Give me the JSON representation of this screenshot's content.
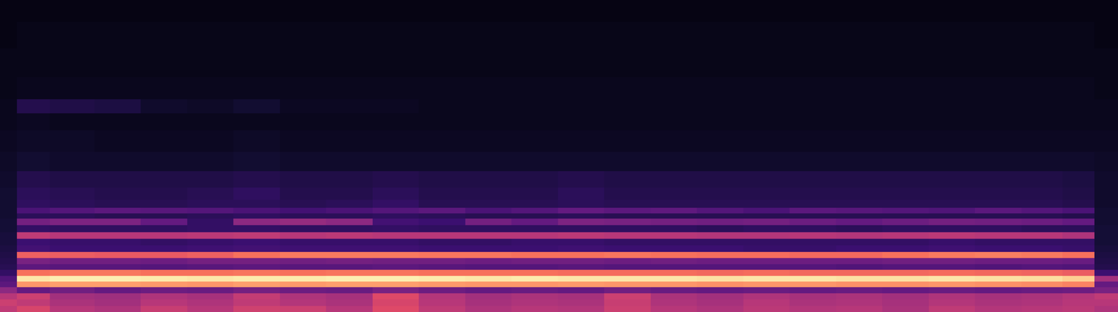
{
  "chart_data": {
    "type": "heatmap",
    "tick_labels": false,
    "xlim": [
      0,
      1568
    ],
    "ylim": [
      0,
      438
    ],
    "zlim": [
      0,
      100
    ],
    "x": [
      8,
      40,
      100,
      165,
      230,
      295,
      360,
      425,
      490,
      555,
      620,
      685,
      750,
      815,
      880,
      945,
      1010,
      1075,
      1140,
      1205,
      1270,
      1335,
      1400,
      1465,
      1515,
      1555
    ],
    "y": [
      4,
      13,
      22,
      31,
      39,
      47,
      55,
      63,
      71,
      80,
      89,
      98,
      107,
      117,
      127,
      135,
      142,
      150,
      165,
      185,
      210,
      240,
      270,
      288,
      310,
      350,
      390,
      425
    ],
    "z": [
      [
        52,
        58,
        50,
        48,
        54,
        50,
        56,
        55,
        50,
        60,
        52,
        48,
        50,
        49,
        55,
        50,
        48,
        51,
        49,
        50,
        47,
        52,
        49,
        50,
        51,
        48
      ],
      [
        55,
        52,
        47,
        45,
        50,
        48,
        52,
        49,
        47,
        58,
        50,
        46,
        48,
        47,
        54,
        48,
        46,
        50,
        47,
        48,
        46,
        49,
        47,
        48,
        50,
        50
      ],
      [
        50,
        55,
        45,
        44,
        48,
        46,
        53,
        48,
        46,
        60,
        49,
        45,
        47,
        46,
        55,
        47,
        45,
        48,
        46,
        47,
        45,
        48,
        46,
        47,
        49,
        52
      ],
      [
        40,
        30,
        33,
        30,
        32,
        31,
        34,
        32,
        31,
        35,
        32,
        30,
        31,
        30,
        33,
        31,
        30,
        31,
        30,
        31,
        30,
        31,
        30,
        31,
        32,
        35
      ],
      [
        28,
        78,
        80,
        80,
        79,
        78,
        80,
        79,
        80,
        80,
        79,
        78,
        78,
        79,
        78,
        78,
        77,
        78,
        78,
        77,
        77,
        78,
        77,
        76,
        74,
        30
      ],
      [
        25,
        95,
        97,
        97,
        96,
        95,
        96,
        96,
        97,
        97,
        96,
        95,
        96,
        95,
        95,
        95,
        94,
        95,
        95,
        94,
        94,
        95,
        94,
        93,
        90,
        45
      ],
      [
        18,
        70,
        72,
        72,
        70,
        70,
        71,
        70,
        71,
        71,
        70,
        70,
        70,
        69,
        69,
        69,
        68,
        69,
        68,
        68,
        68,
        69,
        68,
        67,
        65,
        20
      ],
      [
        15,
        28,
        27,
        27,
        26,
        27,
        28,
        27,
        27,
        28,
        27,
        26,
        26,
        27,
        26,
        26,
        26,
        26,
        26,
        25,
        26,
        26,
        25,
        26,
        25,
        14
      ],
      [
        14,
        35,
        33,
        33,
        32,
        34,
        34,
        33,
        34,
        33,
        33,
        32,
        33,
        33,
        32,
        33,
        32,
        32,
        32,
        32,
        33,
        33,
        32,
        32,
        31,
        13
      ],
      [
        13,
        66,
        65,
        64,
        64,
        66,
        70,
        72,
        72,
        72,
        71,
        71,
        70,
        70,
        71,
        70,
        69,
        69,
        68,
        68,
        70,
        72,
        73,
        72,
        70,
        12
      ],
      [
        12,
        22,
        20,
        20,
        20,
        21,
        22,
        21,
        21,
        21,
        20,
        20,
        20,
        21,
        20,
        20,
        20,
        19,
        19,
        20,
        20,
        21,
        20,
        20,
        19,
        11
      ],
      [
        11,
        20,
        19,
        19,
        18,
        19,
        20,
        19,
        19,
        19,
        18,
        18,
        19,
        19,
        18,
        18,
        18,
        18,
        18,
        18,
        18,
        19,
        18,
        18,
        18,
        10
      ],
      [
        11,
        52,
        50,
        50,
        50,
        51,
        52,
        50,
        51,
        50,
        50,
        50,
        50,
        51,
        50,
        50,
        49,
        49,
        50,
        49,
        50,
        51,
        50,
        50,
        48,
        10
      ],
      [
        10,
        18,
        17,
        17,
        17,
        18,
        18,
        17,
        17,
        18,
        17,
        17,
        17,
        17,
        17,
        17,
        16,
        17,
        17,
        16,
        17,
        17,
        17,
        16,
        16,
        10
      ],
      [
        10,
        34,
        36,
        36,
        30,
        18,
        40,
        42,
        40,
        22,
        20,
        34,
        30,
        36,
        35,
        34,
        33,
        34,
        32,
        30,
        32,
        34,
        33,
        32,
        30,
        9
      ],
      [
        9,
        16,
        16,
        15,
        15,
        16,
        17,
        16,
        16,
        17,
        16,
        15,
        15,
        16,
        15,
        15,
        15,
        15,
        15,
        15,
        15,
        15,
        15,
        15,
        14,
        9
      ],
      [
        9,
        24,
        26,
        28,
        27,
        26,
        24,
        22,
        24,
        26,
        28,
        24,
        26,
        30,
        28,
        29,
        26,
        24,
        28,
        27,
        26,
        25,
        28,
        26,
        24,
        9
      ],
      [
        9,
        17,
        16,
        15,
        15,
        16,
        16,
        15,
        16,
        18,
        15,
        15,
        15,
        16,
        15,
        15,
        15,
        15,
        15,
        15,
        15,
        15,
        15,
        15,
        14,
        8
      ],
      [
        9,
        16,
        15,
        14,
        14,
        15,
        17,
        14,
        14,
        16,
        14,
        14,
        14,
        16,
        14,
        14,
        14,
        14,
        14,
        14,
        14,
        14,
        14,
        14,
        13,
        8
      ],
      [
        8,
        14,
        13,
        13,
        13,
        13,
        14,
        13,
        13,
        14,
        13,
        13,
        13,
        14,
        13,
        13,
        13,
        13,
        13,
        13,
        13,
        13,
        13,
        13,
        12,
        8
      ],
      [
        7,
        9,
        8,
        8,
        8,
        8,
        9,
        8,
        8,
        8,
        8,
        8,
        8,
        8,
        8,
        8,
        8,
        8,
        8,
        8,
        8,
        8,
        8,
        8,
        8,
        7
      ],
      [
        6,
        7,
        7,
        6,
        6,
        6,
        7,
        6,
        6,
        6,
        6,
        6,
        6,
        6,
        6,
        6,
        6,
        6,
        6,
        6,
        6,
        6,
        6,
        6,
        6,
        6
      ],
      [
        5,
        6,
        5,
        5,
        5,
        5,
        5,
        5,
        5,
        5,
        5,
        5,
        5,
        5,
        5,
        5,
        5,
        5,
        5,
        5,
        5,
        5,
        5,
        5,
        5,
        5
      ],
      [
        5,
        14,
        13,
        12,
        8,
        7,
        9,
        6,
        6,
        6,
        5,
        5,
        5,
        5,
        5,
        5,
        5,
        5,
        5,
        5,
        5,
        5,
        5,
        5,
        5,
        5
      ],
      [
        4,
        5,
        5,
        5,
        5,
        5,
        5,
        5,
        5,
        5,
        5,
        5,
        5,
        5,
        5,
        5,
        5,
        5,
        5,
        5,
        5,
        5,
        5,
        5,
        5,
        4
      ],
      [
        4,
        4,
        4,
        4,
        4,
        4,
        4,
        4,
        4,
        4,
        4,
        4,
        4,
        4,
        4,
        4,
        4,
        4,
        4,
        4,
        4,
        4,
        4,
        4,
        4,
        4
      ],
      [
        3,
        4,
        4,
        4,
        4,
        4,
        4,
        4,
        4,
        4,
        4,
        4,
        4,
        4,
        4,
        4,
        4,
        4,
        4,
        4,
        4,
        4,
        4,
        4,
        4,
        3
      ],
      [
        3,
        3,
        3,
        3,
        3,
        3,
        3,
        3,
        3,
        3,
        3,
        3,
        3,
        3,
        3,
        3,
        3,
        3,
        3,
        3,
        3,
        3,
        3,
        3,
        3,
        3
      ]
    ]
  }
}
